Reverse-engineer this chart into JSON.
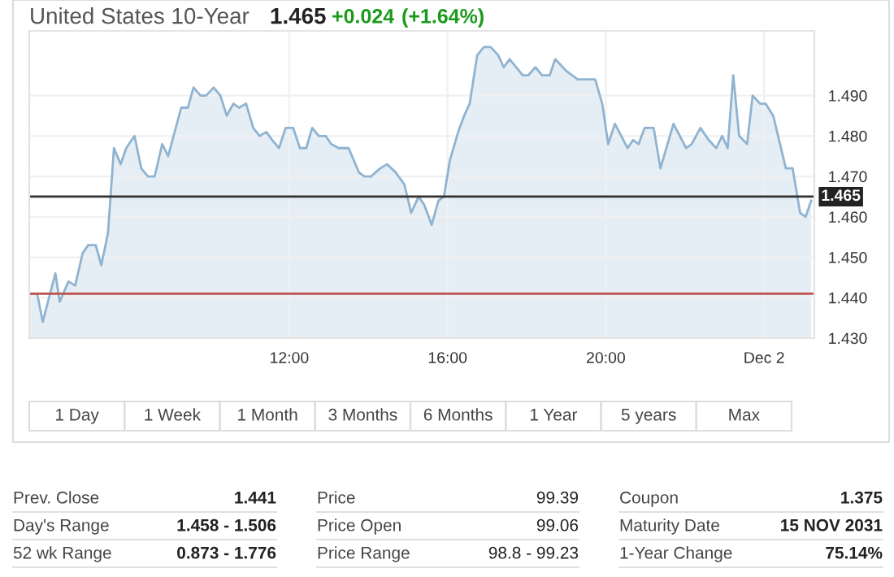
{
  "chart_data": [
    {
      "type": "area",
      "title": "United States 10-Year",
      "annotations": [
        "1.465",
        "+0.024",
        "(+1.64%)",
        "1 Day",
        "1 Week",
        "1 Month",
        "3 Months",
        "6 Months",
        "1 Year",
        "5 years",
        "Max"
      ],
      "series": [
        {
          "color": "#8fb3d0",
          "x": [
            5.44,
            5.63,
            5.77,
            6.09,
            6.2,
            6.42,
            6.59,
            6.78,
            6.92,
            7.11,
            7.25,
            7.42,
            7.57,
            7.74,
            7.88,
            8.09,
            8.26,
            8.43,
            8.6,
            8.79,
            8.94,
            9.27,
            9.44,
            9.58,
            9.76,
            9.9,
            10.09,
            10.26,
            10.42,
            10.59,
            10.73,
            10.91,
            11.09,
            11.25,
            11.42,
            11.57,
            11.74,
            11.91,
            12.1,
            12.27,
            12.43,
            12.58,
            12.75,
            12.92,
            13.06,
            13.25,
            13.5,
            13.76,
            13.9,
            14.07,
            14.3,
            14.47,
            14.69,
            14.91,
            15.08,
            15.27,
            15.41,
            15.6,
            15.77,
            15.91,
            16.06,
            16.27,
            16.42,
            16.56,
            16.75,
            16.92,
            17.09,
            17.28,
            17.42,
            17.57,
            17.9,
            18.04,
            18.22,
            18.39,
            18.58,
            18.72,
            19.01,
            19.29,
            19.73,
            19.91,
            20.06,
            20.23,
            20.55,
            20.69,
            20.83,
            20.98,
            21.21,
            21.38,
            21.71,
            22.03,
            22.17,
            22.39,
            22.6,
            22.79,
            22.94,
            23.08,
            23.22,
            23.37,
            23.57,
            23.71,
            23.9,
            24.04,
            24.23,
            24.55,
            24.72,
            24.91,
            25.05,
            25.19
          ],
          "values": [
            1.441,
            1.441,
            1.434,
            1.446,
            1.439,
            1.444,
            1.443,
            1.451,
            1.453,
            1.453,
            1.448,
            1.456,
            1.477,
            1.473,
            1.477,
            1.48,
            1.472,
            1.47,
            1.47,
            1.478,
            1.475,
            1.487,
            1.487,
            1.492,
            1.49,
            1.49,
            1.492,
            1.49,
            1.485,
            1.488,
            1.487,
            1.488,
            1.482,
            1.48,
            1.481,
            1.479,
            1.477,
            1.482,
            1.482,
            1.477,
            1.477,
            1.482,
            1.48,
            1.48,
            1.478,
            1.477,
            1.477,
            1.471,
            1.47,
            1.47,
            1.472,
            1.473,
            1.471,
            1.468,
            1.461,
            1.465,
            1.463,
            1.458,
            1.464,
            1.465,
            1.474,
            1.481,
            1.485,
            1.488,
            1.5,
            1.502,
            1.502,
            1.5,
            1.497,
            1.499,
            1.495,
            1.495,
            1.497,
            1.495,
            1.495,
            1.499,
            1.496,
            1.494,
            1.494,
            1.488,
            1.478,
            1.483,
            1.477,
            1.479,
            1.478,
            1.482,
            1.482,
            1.472,
            1.483,
            1.477,
            1.478,
            1.482,
            1.479,
            1.477,
            1.48,
            1.477,
            1.495,
            1.48,
            1.478,
            1.49,
            1.488,
            1.488,
            1.485,
            1.472,
            1.472,
            1.461,
            1.46,
            1.464
          ]
        }
      ],
      "xlim": [
        5.43,
        25.27
      ],
      "ylim": [
        1.43,
        1.506
      ],
      "xticks": [
        {
          "value": 12,
          "label": "12:00"
        },
        {
          "value": 16,
          "label": "16:00"
        },
        {
          "value": 20,
          "label": "20:00"
        },
        {
          "value": 24,
          "label": "Dec 2"
        }
      ],
      "yticks": [
        {
          "value": 1.43,
          "label": "1.430"
        },
        {
          "value": 1.44,
          "label": "1.440"
        },
        {
          "value": 1.45,
          "label": "1.450"
        },
        {
          "value": 1.46,
          "label": "1.460"
        },
        {
          "value": 1.47,
          "label": "1.470"
        },
        {
          "value": 1.48,
          "label": "1.480"
        },
        {
          "value": 1.49,
          "label": "1.490"
        }
      ],
      "ref_lines": [
        {
          "axis": "y",
          "value": 1.465,
          "label": "1.465",
          "color": "#333333"
        },
        {
          "axis": "y",
          "value": 1.441,
          "color": "#c0504d"
        }
      ],
      "grid": true
    },
    {
      "type": "other",
      "annotations": [
        "Prev. Close",
        "1.441",
        "Price",
        "99.39",
        "Coupon",
        "1.375",
        "Day's Range",
        "1.458 - 1.506",
        "Price Open",
        "99.06",
        "Maturity Date",
        "15 NOV 2031",
        "52 wk Range",
        "0.873 - 1.776",
        "Price Range",
        "98.8 - 99.23",
        "1-Year Change",
        "75.14%"
      ]
    }
  ]
}
